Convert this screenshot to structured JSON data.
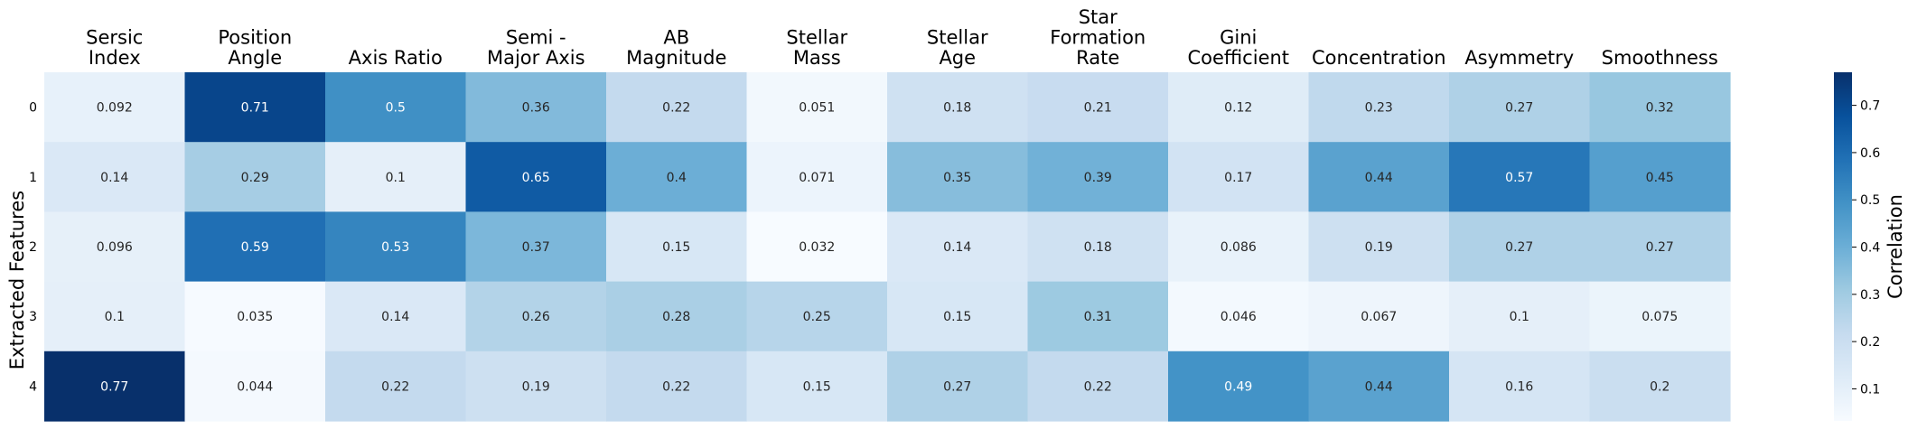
{
  "chart_data": {
    "type": "heatmap",
    "columns": [
      [
        "Sersic",
        "Index"
      ],
      [
        "Position",
        "Angle"
      ],
      [
        "Axis Ratio"
      ],
      [
        "Semi -",
        "Major Axis"
      ],
      [
        "AB",
        "Magnitude"
      ],
      [
        "Stellar",
        "Mass"
      ],
      [
        "Stellar",
        "Age"
      ],
      [
        "Star",
        "Formation",
        "Rate"
      ],
      [
        "Gini",
        "Coefficient"
      ],
      [
        "Concentration"
      ],
      [
        "Asymmetry"
      ],
      [
        "Smoothness"
      ]
    ],
    "rows": [
      "0",
      "1",
      "2",
      "3",
      "4"
    ],
    "ylabel": "Extracted Features",
    "values": [
      [
        0.092,
        0.71,
        0.5,
        0.36,
        0.22,
        0.051,
        0.18,
        0.21,
        0.12,
        0.23,
        0.27,
        0.32
      ],
      [
        0.14,
        0.29,
        0.1,
        0.65,
        0.4,
        0.071,
        0.35,
        0.39,
        0.17,
        0.44,
        0.57,
        0.45
      ],
      [
        0.096,
        0.59,
        0.53,
        0.37,
        0.15,
        0.032,
        0.14,
        0.18,
        0.086,
        0.19,
        0.27,
        0.27
      ],
      [
        0.1,
        0.035,
        0.14,
        0.26,
        0.28,
        0.25,
        0.15,
        0.31,
        0.046,
        0.067,
        0.1,
        0.075
      ],
      [
        0.77,
        0.044,
        0.22,
        0.19,
        0.22,
        0.15,
        0.27,
        0.22,
        0.49,
        0.44,
        0.16,
        0.2
      ]
    ],
    "value_labels": [
      [
        "0.092",
        "0.71",
        "0.5",
        "0.36",
        "0.22",
        "0.051",
        "0.18",
        "0.21",
        "0.12",
        "0.23",
        "0.27",
        "0.32"
      ],
      [
        "0.14",
        "0.29",
        "0.1",
        "0.65",
        "0.4",
        "0.071",
        "0.35",
        "0.39",
        "0.17",
        "0.44",
        "0.57",
        "0.45"
      ],
      [
        "0.096",
        "0.59",
        "0.53",
        "0.37",
        "0.15",
        "0.032",
        "0.14",
        "0.18",
        "0.086",
        "0.19",
        "0.27",
        "0.27"
      ],
      [
        "0.1",
        "0.035",
        "0.14",
        "0.26",
        "0.28",
        "0.25",
        "0.15",
        "0.31",
        "0.046",
        "0.067",
        "0.1",
        "0.075"
      ],
      [
        "0.77",
        "0.044",
        "0.22",
        "0.19",
        "0.22",
        "0.15",
        "0.27",
        "0.22",
        "0.49",
        "0.44",
        "0.16",
        "0.2"
      ]
    ],
    "colormap": "Blues",
    "colorbar": {
      "label": "Correlation",
      "range": [
        0.032,
        0.77
      ],
      "ticks": [
        0.1,
        0.2,
        0.3,
        0.4,
        0.5,
        0.6,
        0.7
      ],
      "tick_labels": [
        "0.1",
        "0.2",
        "0.3",
        "0.4",
        "0.5",
        "0.6",
        "0.7"
      ]
    },
    "grid": false
  }
}
